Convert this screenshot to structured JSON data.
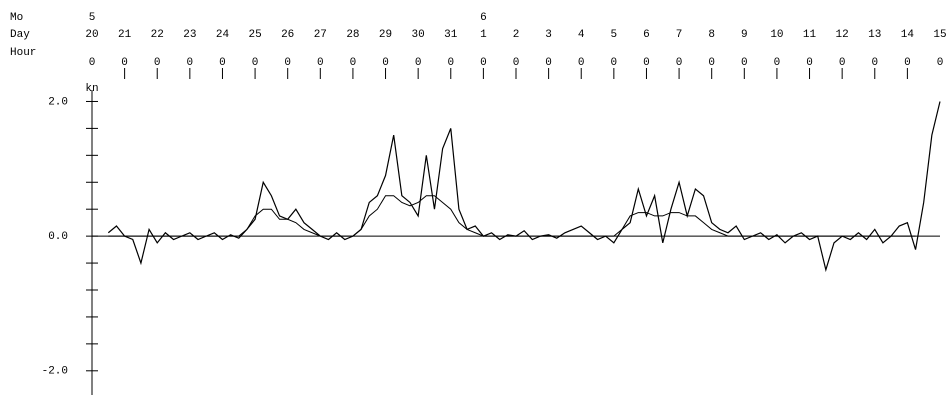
{
  "chart_data": {
    "type": "line",
    "row_labels": {
      "month": "Mo",
      "day": "Day",
      "hour": "Hour"
    },
    "y_label": "kn",
    "months": [
      {
        "value": 0,
        "label": "5"
      },
      {
        "value": 12,
        "label": "6"
      }
    ],
    "days": [
      {
        "value": 0,
        "label": "20"
      },
      {
        "value": 1,
        "label": "21"
      },
      {
        "value": 2,
        "label": "22"
      },
      {
        "value": 3,
        "label": "23"
      },
      {
        "value": 4,
        "label": "24"
      },
      {
        "value": 5,
        "label": "25"
      },
      {
        "value": 6,
        "label": "26"
      },
      {
        "value": 7,
        "label": "27"
      },
      {
        "value": 8,
        "label": "28"
      },
      {
        "value": 9,
        "label": "29"
      },
      {
        "value": 10,
        "label": "30"
      },
      {
        "value": 11,
        "label": "31"
      },
      {
        "value": 12,
        "label": "1"
      },
      {
        "value": 13,
        "label": "2"
      },
      {
        "value": 14,
        "label": "3"
      },
      {
        "value": 15,
        "label": "4"
      },
      {
        "value": 16,
        "label": "5"
      },
      {
        "value": 17,
        "label": "6"
      },
      {
        "value": 18,
        "label": "7"
      },
      {
        "value": 19,
        "label": "8"
      },
      {
        "value": 20,
        "label": "9"
      },
      {
        "value": 21,
        "label": "10"
      },
      {
        "value": 22,
        "label": "11"
      },
      {
        "value": 23,
        "label": "12"
      },
      {
        "value": 24,
        "label": "13"
      },
      {
        "value": 25,
        "label": "14"
      },
      {
        "value": 26,
        "label": "15"
      }
    ],
    "hours": [
      {
        "value": 0,
        "label": "0"
      },
      {
        "value": 1,
        "label": "0"
      },
      {
        "value": 2,
        "label": "0"
      },
      {
        "value": 3,
        "label": "0"
      },
      {
        "value": 4,
        "label": "0"
      },
      {
        "value": 5,
        "label": "0"
      },
      {
        "value": 6,
        "label": "0"
      },
      {
        "value": 7,
        "label": "0"
      },
      {
        "value": 8,
        "label": "0"
      },
      {
        "value": 9,
        "label": "0"
      },
      {
        "value": 10,
        "label": "0"
      },
      {
        "value": 11,
        "label": "0"
      },
      {
        "value": 12,
        "label": "0"
      },
      {
        "value": 13,
        "label": "0"
      },
      {
        "value": 14,
        "label": "0"
      },
      {
        "value": 15,
        "label": "0"
      },
      {
        "value": 16,
        "label": "0"
      },
      {
        "value": 17,
        "label": "0"
      },
      {
        "value": 18,
        "label": "0"
      },
      {
        "value": 19,
        "label": "0"
      },
      {
        "value": 20,
        "label": "0"
      },
      {
        "value": 21,
        "label": "0"
      },
      {
        "value": 22,
        "label": "0"
      },
      {
        "value": 23,
        "label": "0"
      },
      {
        "value": 24,
        "label": "0"
      },
      {
        "value": 25,
        "label": "0"
      },
      {
        "value": 26,
        "label": "0"
      }
    ],
    "xlim": [
      0,
      26
    ],
    "ylim": [
      -2.3,
      2.2
    ],
    "yticks": [
      {
        "value": 2,
        "label": "2.0"
      },
      {
        "value": 0,
        "label": "0.0"
      },
      {
        "value": -2,
        "label": "-2.0"
      }
    ],
    "yminorticks": [
      1.6,
      1.2,
      0.8,
      0.4,
      -0.4,
      -0.8,
      -1.2,
      -1.6
    ],
    "zero_line": 0,
    "x": [
      0,
      0.25,
      0.5,
      0.75,
      1,
      1.25,
      1.5,
      1.75,
      2,
      2.25,
      2.5,
      2.75,
      3,
      3.25,
      3.5,
      3.75,
      4,
      4.25,
      4.5,
      4.75,
      5,
      5.25,
      5.5,
      5.75,
      6,
      6.25,
      6.5,
      6.75,
      7,
      7.25,
      7.5,
      7.75,
      8,
      8.25,
      8.5,
      8.75,
      9,
      9.25,
      9.5,
      9.75,
      10,
      10.25,
      10.5,
      10.75,
      11,
      11.25,
      11.5,
      11.75,
      12,
      12.25,
      12.5,
      12.75,
      13,
      13.25,
      13.5,
      13.75,
      14,
      14.25,
      14.5,
      14.75,
      15,
      15.25,
      15.5,
      15.75,
      16,
      16.25,
      16.5,
      16.75,
      17,
      17.25,
      17.5,
      17.75,
      18,
      18.25,
      18.5,
      18.75,
      19,
      19.25,
      19.5,
      19.75,
      20,
      20.25,
      20.5,
      20.75,
      21,
      21.25,
      21.5,
      21.75,
      22,
      22.25,
      22.5,
      22.75,
      23,
      23.25,
      23.5,
      23.75,
      24,
      24.25,
      24.5,
      24.75,
      25,
      25.25,
      25.5,
      25.75,
      26
    ],
    "series": [
      {
        "color": "#000000",
        "values": [
          null,
          null,
          0.05,
          0.15,
          0.0,
          -0.05,
          -0.4,
          0.1,
          -0.1,
          0.05,
          -0.05,
          0.0,
          0.05,
          -0.05,
          0.0,
          0.05,
          -0.05,
          0.02,
          -0.03,
          0.1,
          0.25,
          0.8,
          0.6,
          0.3,
          0.25,
          0.4,
          0.2,
          0.1,
          0.0,
          -0.05,
          0.05,
          -0.05,
          0.0,
          0.1,
          0.5,
          0.6,
          0.9,
          1.5,
          0.6,
          0.5,
          0.3,
          1.2,
          0.4,
          1.3,
          1.6,
          0.4,
          0.1,
          0.15,
          0.0,
          0.05,
          -0.05,
          0.02,
          0.0,
          0.08,
          -0.05,
          0.0,
          0.02,
          -0.03,
          0.05,
          0.1,
          0.15,
          0.05,
          -0.05,
          0.0,
          -0.1,
          0.1,
          0.2,
          0.7,
          0.3,
          0.6,
          -0.1,
          0.4,
          0.8,
          0.3,
          0.7,
          0.6,
          0.2,
          0.1,
          0.05,
          0.15,
          -0.05,
          0.0,
          0.05,
          -0.05,
          0.02,
          -0.1,
          0.0,
          0.05,
          -0.05,
          0.0,
          -0.5,
          -0.1,
          0.0,
          -0.05,
          0.05,
          -0.05,
          0.1,
          -0.1,
          0.0,
          0.15,
          0.2,
          -0.2,
          0.5,
          1.5,
          2.0
        ]
      },
      {
        "color": "#000000",
        "values": [
          null,
          null,
          0,
          0,
          0,
          0,
          0,
          0,
          0,
          0,
          0,
          0,
          0,
          0,
          0,
          0,
          0,
          0,
          0,
          0.1,
          0.3,
          0.4,
          0.4,
          0.25,
          0.25,
          0.2,
          0.1,
          0.05,
          0,
          0,
          0,
          0,
          0,
          0.1,
          0.3,
          0.4,
          0.6,
          0.6,
          0.5,
          0.45,
          0.5,
          0.6,
          0.6,
          0.5,
          0.4,
          0.2,
          0.1,
          0.05,
          0,
          0,
          0,
          0,
          0,
          0,
          0,
          0,
          0,
          0,
          0,
          0,
          0,
          0,
          0,
          0,
          0,
          0.1,
          0.3,
          0.35,
          0.35,
          0.3,
          0.3,
          0.35,
          0.35,
          0.3,
          0.3,
          0.2,
          0.1,
          0.05,
          0,
          0,
          0,
          0,
          0,
          0,
          0,
          0,
          0,
          0,
          0,
          0,
          0,
          0,
          0,
          0,
          0,
          0,
          0,
          0,
          0,
          0,
          0,
          0,
          null,
          null,
          null
        ]
      }
    ]
  }
}
